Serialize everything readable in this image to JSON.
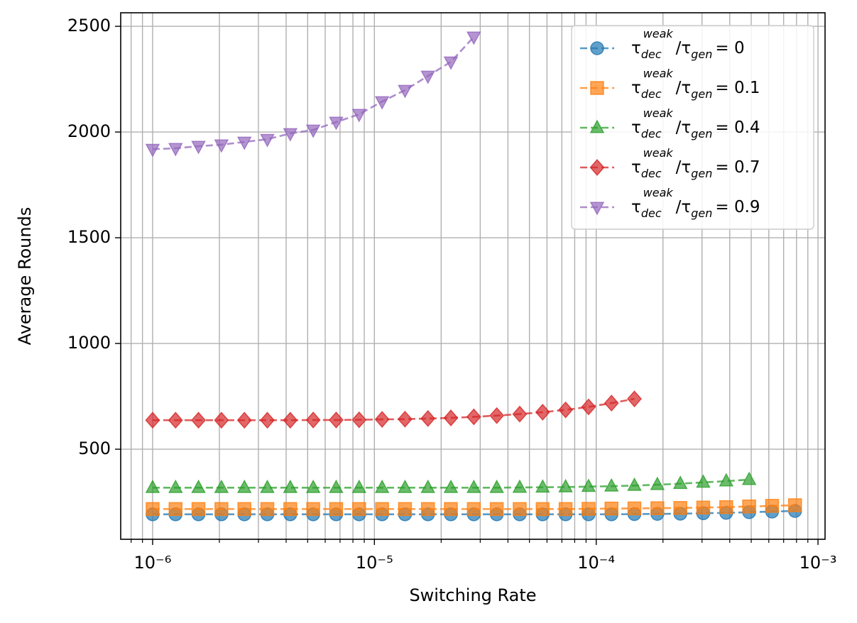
{
  "chart_data": {
    "type": "line",
    "xlabel": "Switching Rate",
    "ylabel": "Average Rounds",
    "xscale": "log",
    "grid": true,
    "legend": "upper right",
    "xlim": [
      7.18e-07,
      0.001076
    ],
    "ylim": [
      74,
      2564
    ],
    "yticks": [
      500,
      1000,
      1500,
      2000,
      2500
    ],
    "xticks": [
      {
        "value": 1e-06,
        "label": "10⁻⁶"
      },
      {
        "value": 1e-05,
        "label": "10⁻⁵"
      },
      {
        "value": 0.0001,
        "label": "10⁻⁴"
      },
      {
        "value": 0.001,
        "label": "10⁻³"
      }
    ],
    "xminorticks": [
      8e-07,
      9e-07,
      2e-06,
      3e-06,
      4e-06,
      5e-06,
      6e-06,
      7e-06,
      8e-06,
      9e-06,
      2e-05,
      3e-05,
      4e-05,
      5e-05,
      6e-05,
      7e-05,
      8e-05,
      9e-05,
      0.0002,
      0.0003,
      0.0004,
      0.0005,
      0.0006,
      0.0007,
      0.0008,
      0.0009
    ],
    "series": [
      {
        "name": [
          "τ",
          "dec",
          "weak",
          "/τ",
          "gen",
          "= 0"
        ],
        "color": "#1f77b4",
        "marker": "circle",
        "x": [
          1e-06,
          1.269e-06,
          1.61e-06,
          2.043e-06,
          2.593e-06,
          3.29e-06,
          4.175e-06,
          5.298e-06,
          6.723e-06,
          8.532e-06,
          1.083e-05,
          1.374e-05,
          1.743e-05,
          2.212e-05,
          2.807e-05,
          3.562e-05,
          4.52e-05,
          5.736e-05,
          7.279e-05,
          9.237e-05,
          0.0001172,
          0.0001487,
          0.0001887,
          0.0002395,
          0.0003039,
          0.0003857,
          0.0004894,
          0.000621,
          0.000788
        ],
        "values": [
          192,
          192,
          192,
          192,
          192,
          192,
          192,
          192,
          192,
          192,
          192,
          192,
          192,
          192,
          192,
          192,
          192,
          192,
          192,
          192,
          192,
          193,
          194,
          195,
          197,
          199,
          202,
          205,
          208
        ]
      },
      {
        "name": [
          "τ",
          "dec",
          "weak",
          "/τ",
          "gen",
          "= 0.1"
        ],
        "color": "#ff7f0e",
        "marker": "square",
        "x": [
          1e-06,
          1.269e-06,
          1.61e-06,
          2.043e-06,
          2.593e-06,
          3.29e-06,
          4.175e-06,
          5.298e-06,
          6.723e-06,
          8.532e-06,
          1.083e-05,
          1.374e-05,
          1.743e-05,
          2.212e-05,
          2.807e-05,
          3.562e-05,
          4.52e-05,
          5.736e-05,
          7.279e-05,
          9.237e-05,
          0.0001172,
          0.0001487,
          0.0001887,
          0.0002395,
          0.0003039,
          0.0003857,
          0.0004894,
          0.000621,
          0.000788
        ],
        "values": [
          217,
          217,
          217,
          217,
          217,
          217,
          217,
          217,
          217,
          217,
          217,
          217,
          217,
          217,
          217,
          217,
          217,
          217,
          217,
          218,
          219,
          220,
          221,
          222,
          224,
          226,
          229,
          232,
          235
        ]
      },
      {
        "name": [
          "τ",
          "dec",
          "weak",
          "/τ",
          "gen",
          "= 0.4"
        ],
        "color": "#2ca02c",
        "marker": "triangle-up",
        "x": [
          1e-06,
          1.269e-06,
          1.61e-06,
          2.043e-06,
          2.593e-06,
          3.29e-06,
          4.175e-06,
          5.298e-06,
          6.723e-06,
          8.532e-06,
          1.083e-05,
          1.374e-05,
          1.743e-05,
          2.212e-05,
          2.807e-05,
          3.562e-05,
          4.52e-05,
          5.736e-05,
          7.279e-05,
          9.237e-05,
          0.0001172,
          0.0001487,
          0.0001887,
          0.0002395,
          0.0003039,
          0.0003857,
          0.0004894
        ],
        "values": [
          318,
          318,
          318,
          318,
          318,
          318,
          318,
          318,
          318,
          318,
          318,
          318,
          318,
          318,
          318,
          318,
          319,
          320,
          321,
          323,
          325,
          328,
          332,
          337,
          343,
          349,
          356
        ]
      },
      {
        "name": [
          "τ",
          "dec",
          "weak",
          "/τ",
          "gen",
          "= 0.7"
        ],
        "color": "#d62728",
        "marker": "diamond",
        "x": [
          1e-06,
          1.269e-06,
          1.61e-06,
          2.043e-06,
          2.593e-06,
          3.29e-06,
          4.175e-06,
          5.298e-06,
          6.723e-06,
          8.532e-06,
          1.083e-05,
          1.374e-05,
          1.743e-05,
          2.212e-05,
          2.807e-05,
          3.562e-05,
          4.52e-05,
          5.736e-05,
          7.279e-05,
          9.237e-05,
          0.0001172,
          0.0001487
        ],
        "values": [
          637,
          637,
          637,
          637,
          637,
          637,
          637,
          638,
          638,
          639,
          641,
          642,
          645,
          648,
          653,
          659,
          666,
          675,
          686,
          700,
          718,
          738
        ]
      },
      {
        "name": [
          "τ",
          "dec",
          "weak",
          "/τ",
          "gen",
          "= 0.9"
        ],
        "color": "#9467bd",
        "marker": "triangle-down",
        "x": [
          1e-06,
          1.269e-06,
          1.61e-06,
          2.043e-06,
          2.593e-06,
          3.29e-06,
          4.175e-06,
          5.298e-06,
          6.723e-06,
          8.532e-06,
          1.083e-05,
          1.374e-05,
          1.743e-05,
          2.212e-05,
          2.807e-05
        ],
        "values": [
          1919,
          1923,
          1933,
          1940,
          1953,
          1966,
          1993,
          2010,
          2047,
          2084,
          2144,
          2198,
          2265,
          2332,
          2450
        ]
      }
    ]
  }
}
